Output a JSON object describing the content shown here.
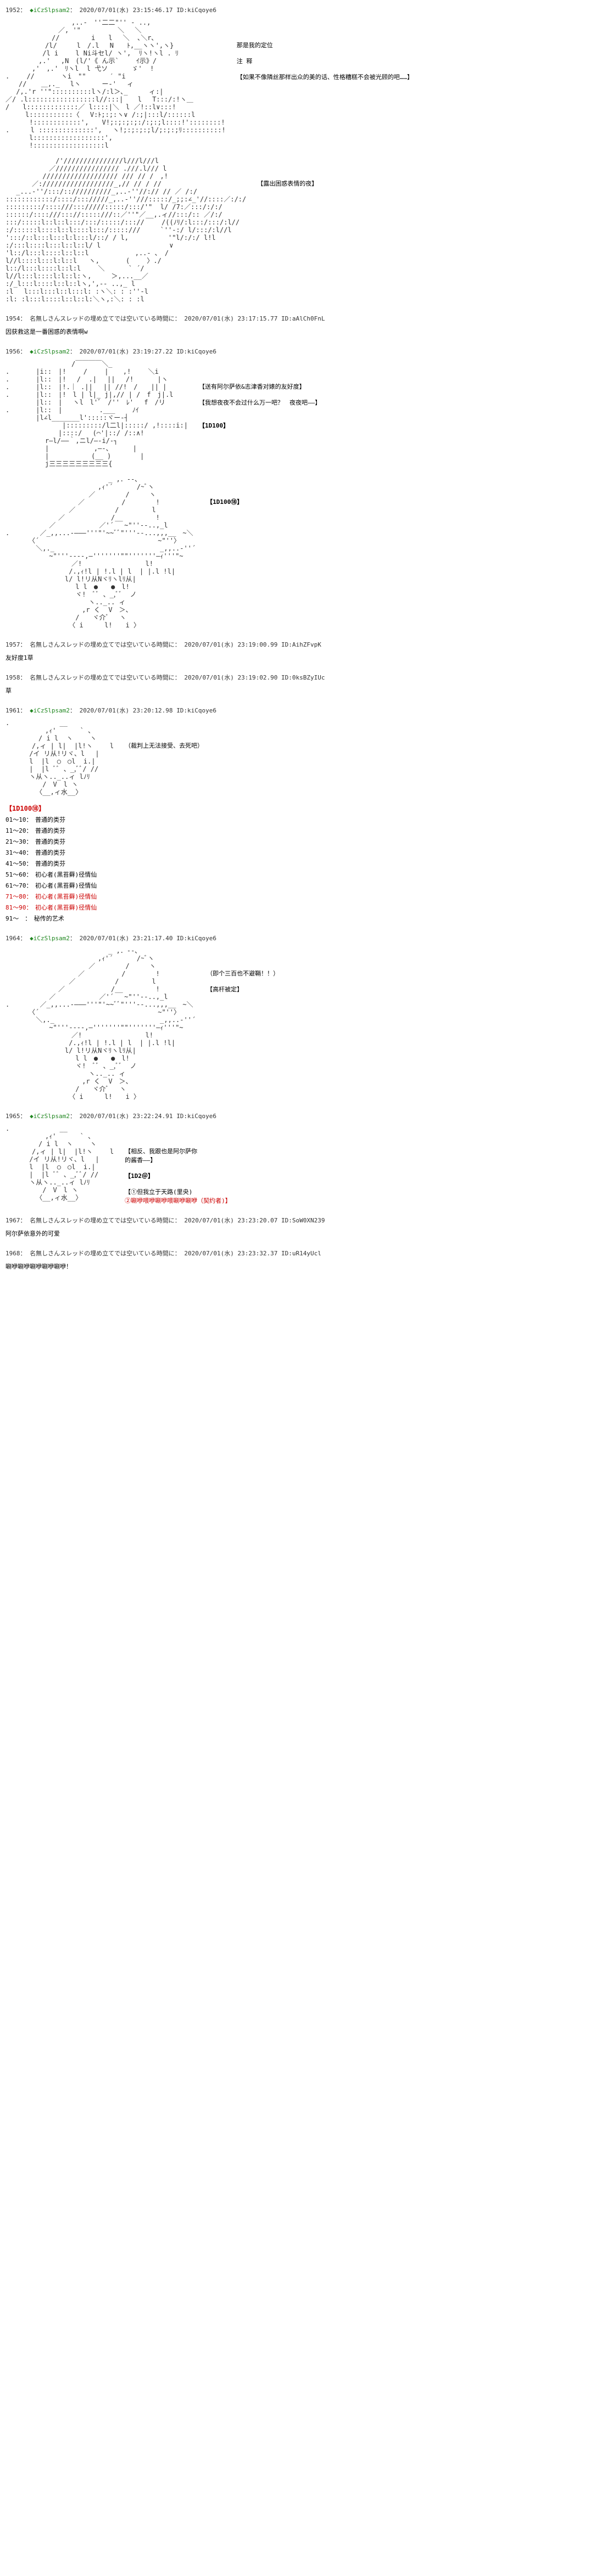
{
  "posts": [
    {
      "num": "1952",
      "trip": "◆iCzSlpsam2",
      "date": "2020/07/01(水) 23:15:46.17",
      "id": "ID:kiCqoye6",
      "aa1": "　　　　　　　　　　,..-　''二二\"'' ‐ ..,\n　　　　　　　　／, '\" 　　　　　＼　 ＼\n　　　　　　　//　 　 　 i　　l　 ＼  ､＼r､\n　　　　　　/l/　　　l　/.l　 N　　ﾄ,__ヽヽ',ヽ}\n　　　　　 /l i　　 l Ni斗セl/ ヽ',  ﾘヽ!ヽl . ﾘ\n　　　　　,.'　 ,N　(l/'《 ん示`　　 ｲ示》/\n　　　　,'　,.'　ﾘヽl  l 弋ソ　　　 ゞ'  !\n.　　 //　　　　ヽi　\"\"　　　 ′ \"i\n　　// 　 ＿,._　 lヽ　 　 ー‐'　 ィ\n　 /,.'r ''\"::::::::::lヽ/:l＞､_　　  ィ:|\n／/ .l:::::::::::::::::l//:::|　  l　 T:::/:!ヽ＿\n/　　l:::::::::::::／ l::::|＼　l ／!::l∨:::!\n　　　l:::::::::::〈　 V:ﾄ;:;:ヽ∨ /:;|:::l/::::::l\n　　　 !::::::::::::',　　V!;:;:;:;:/:;:;l::::!'::::::::!\n.　 　 l ::::::::::::::',　 ヽ!;:;:;:;l/;:;:;ﾘ::::::::::!\n　　　 l::::::::::::::::::',\n　　　 !::::::::::::::::::l",
      "dialogue1": {
        "line1": "那是我的定位",
        "line2": "注 释",
        "line3": "【如果不像隣丝那样出众的美的话、性格糟糕不会被光顾的吧……】"
      },
      "aa2": "　　　　　　　 /'///////////////l///l///l\n　　　　　　 ／//////////////// .///.l/// l\n　　　　　 /////////////////// /// // /　,!\n　　　　／://////////////////_,// // / //\n　 _...-''/:::/:://////////_,..-''//:// // ／ /:/\n::::::::::::/::::/::://///_,..-''///:::::/_;;:∠_'//::::／:/:/\n:::::::::/::::///::://///:::::/:::/'\"  l/ /7:／:::/:/:/\n::::::/::::///::://:::::///::／''\"／__,.ィ//:::/:: ／/:/\n:::/:::::l::l::l:::/:::/:::::/::://　　 /((ﾉﾘ/:l:::/:::/:l//\n:/::::::l::::l::l::::l:::/:::::///　　　`''‐:/ l/:::/:l//l\n':::/::l:::l:::l:l:::l/::/ / l,　　　　　　'\"l/:/:/ l!l\n:/:::l::::l:::l::l::l/ l　　　　　 　 　 　 ∨\n'l::/l:::l::::l::l::l　　　　　　　,..- ､　/\nl//l::::l:::l:l::l   ヽ,　　　　(　　 〉./\nl::/l:::l::::l::l:l　　 ＼　　　 ` ´/\nl//l:::l::::l:l::l:ヽ,　　　＞,...__／\n:/_l:::l::::l::l::lヽ,',‐- ..,_ l\n:l　 l:::l:::l::l:::l: :ヽ＼: : :''‐l\n:l: :l:::l::::l::l::l:＼ヽ,:＼: : :l",
      "dialogue2": "【露出困惑表情的夜】"
    },
    {
      "num": "1954",
      "name": "名無しさんスレッドの埋め立てでは空いている時間に",
      "date": "2020/07/01(水) 23:17:15.77",
      "id": "ID:aAlCh0FnL",
      "text": "因获救这是一番困惑的表情啊w"
    },
    {
      "num": "1956",
      "trip": "◆iCzSlpsam2",
      "date": "2020/07/01(水) 23:19:27.22",
      "id": "ID:kiCqoye6",
      "aa": "　　　　　　　　　　/￣￣￣￣＼_\n.　　　　|i::　|! 　　/　　 | 　 ,!　　 ＼i\n.　　　　|l::　|!　 /  .|　 ||　 /!　　　 |ヽ\n.　　　　|l::　|!.｜ .||　 || //!　/　　|| |\n.　　　　|l::　|!　l | l|_ j|,// | /　f　j|.l\n　　　　 |l::　|　 ヽl　l'ﾞ　/''　ﾚ'　 f　/リ\n.　　　　|l::　| 　　　　　.___　　 ﾉｲ\n　　　　 |l∠l_______l':::::ヾー‐┤\n　　　　　　　　 |:::::::::/l二l|:::::/ ,!::::i:|\n　　　　　　　　|::::/　 (⌒'|::/ /::∧!\n　　　　　　r―l/――｀,ニl/―‐i/‐┐\n　　　　　　|　　　 　 　 ,―-、　　　 |\n　　　　　　|　 　 　 　 (__ ) 　 　  |\n　　　　　　j三三三三三三三三三{",
      "dialogue": {
        "line1": "【送有阿尔萨依&志津香对婊的友好度】",
        "line2": "【我想夜夜不会过什么万一吧？　夜夜吧——】",
        "dice": "【1D100】"
      }
    },
    {
      "num": "1957",
      "name": "名無しさんスレッドの埋め立てでは空いている時間に",
      "date": "2020/07/01(水) 23:19:00.99",
      "id": "ID:AihZFvpK",
      "text": "友好度1草"
    },
    {
      "num": "1958",
      "name": "名無しさんスレッドの埋め立てでは空いている時間に",
      "date": "2020/07/01(水) 23:19:02.90",
      "id": "ID:0ksBZyIUc",
      "text": "草"
    },
    {
      "num": "1961",
      "trip": "◆iCzSlpsam2",
      "date": "2020/07/01(水) 23:20:12.98",
      "id": "ID:kiCqoye6",
      "dialogue": "（裁判上无法接受、去死吧）",
      "dice_header": "【1D100⑱】",
      "dice_table": [
        {
          "range": "01～10",
          "text": "普通的类芬",
          "class": ""
        },
        {
          "range": "11～20",
          "text": "普通的类芬",
          "class": ""
        },
        {
          "range": "21～30",
          "text": "普通的类芬",
          "class": ""
        },
        {
          "range": "31～40",
          "text": "普通的类芬",
          "class": ""
        },
        {
          "range": "41～50",
          "text": "普通的类芬",
          "class": ""
        },
        {
          "range": "51～60",
          "text": "初心者(黑苔藓)径情仙",
          "class": ""
        },
        {
          "range": "61～70",
          "text": "初心者(黑苔藓)径情仙",
          "class": ""
        },
        {
          "range": "71～80",
          "text": "初心者(黑苔藓)径情仙",
          "class": "red"
        },
        {
          "range": "81～90",
          "text": "初心者(黑苔藓)径情仙",
          "class": "red"
        },
        {
          "range": "91～　",
          "text": "秘传的艺术",
          "class": ""
        }
      ]
    },
    {
      "num": "1964",
      "trip": "◆iCzSlpsam2",
      "date": "2020/07/01(水) 23:21:17.40",
      "id": "ID:kiCqoye6",
      "dialogue": {
        "line1": "（即个三百也不避鞘！！）",
        "line2": "【高杆被定】"
      }
    },
    {
      "num": "1965",
      "trip": "◆iCzSlpsam2",
      "date": "2020/07/01(水) 23:22:24.91",
      "id": "ID:kiCqoye6",
      "dialogue": {
        "line1": "【相反、我跟也是阿尔萨你",
        "line2": "的酱香——】",
        "dice": "【1D2＠】",
        "line3": "【①但我立于天路(里央)",
        "line4": "②唰咿喂咿唰咿喂唰咿唰咿（契约者)】"
      }
    },
    {
      "num": "1967",
      "name": "名無しさんスレッドの埋め立てでは空いている時間に",
      "date": "2020/07/01(水) 23:23:20.07",
      "id": "ID:SoW0XN239",
      "text": "阿尔萨依意外的可爱"
    },
    {
      "num": "1968",
      "name": "名無しさんスレッドの埋め立てでは空いている時間に",
      "date": "2020/07/01(水) 23:23:32.37",
      "id": "ID:uR14yUcl",
      "text": "唰咿唰咿唰咿唰咿唰咿！"
    }
  ],
  "aa_dice": "【1D100⑱】",
  "aa_generic_small": ".　　　　　　　 __\n　　　　　　,ｨ'　　　 ` 、\n　　　　　/ i l  ヽ 　　ヽ\n　　　　/,ィ | l|  |l!ヽ 　　l\n　　　 /イ リ从!リヾ、l　 |\n　　　 l  |l  ○　○l  i.|\n　　　 |  |l ﾞﾞ 、_,ﾞﾞ/ //\n　　　 ヽ从ヽ.._..ィ lﾉﾘ\n　　　　　 /　V　l ヽ\n　　　　 〈__,ィ水__〉",
  "aa_witch_hat": "　　　　　　　　　　　　　　　 _ ,．--､\n　　　　　　　　　　　　　　,ｨ'´　　　 /~ﾞヽ\n　　　　　　　　　　　　 ／　　　　 /　　　ヽ\n　　　　　　　　　　　／　　　　　 /　　　　 !\n　　　　　　　　　 ／　　　　　　/　　　　　l\n　　　　　　　　／　　　　　　　/__　　　　　!\n　　　　　　 ／　　　　　　 ／'´　 ~\"''‐-..,_l\n.　　　　 ／_,,...-―――'''\"'~~ﾞﾞ\"'''‐-...,,,__　~＼\n　　　　〈´　　　　　　　　　　　　　　　　　　~\"''〉\n　　　　 ＼,._　 　 　 　 　 　 　 　 　 　 _,,..-''´\n　　　　　　 ~\"'''‐---,―'''''''\"\"'''''''―ｨ'''\"~\n　　　　　　　　　　／!　 　 　 　 　 　 l!\n　　　　　　　　　 /.,ｨ!l | !.l | l  | |.l !l|\n　　　　　　　　　l/ l!リ从Nヾﾘヽlﾘ从|\n　　　　　　　　　　 l l　●　　●　l!\n　　　　　　　　　　 ヾ!　ﾞﾞ 、_,ﾞﾞ  ノ\n　　　　　　　　　　　　 ヽ.._.. ィ\n　　　　　　　　　　　 ,r く  V　＞、\n　　　　　　　　　　 /　　ヾ介ﾞ　 ヽ\n　　　　　　　　　 〈 i　 　 l!　　i 〉"
}
